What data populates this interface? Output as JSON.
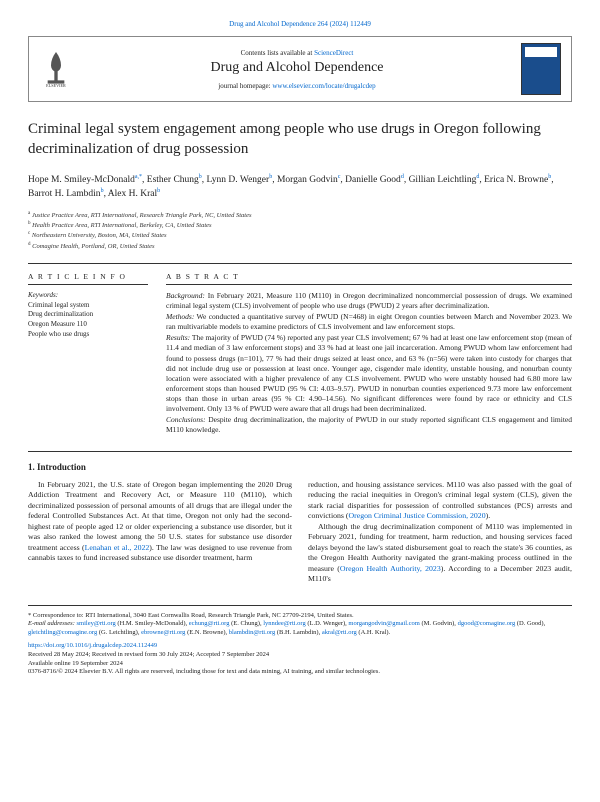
{
  "topLink": "Drug and Alcohol Dependence 264 (2024) 112449",
  "header": {
    "contentsPrefix": "Contents lists available at ",
    "contentsLink": "ScienceDirect",
    "journalName": "Drug and Alcohol Dependence",
    "homepagePrefix": "journal homepage: ",
    "homepageLink": "www.elsevier.com/locate/drugalcdep"
  },
  "title": "Criminal legal system engagement among people who use drugs in Oregon following decriminalization of drug possession",
  "authors": "Hope M. Smiley-McDonald",
  "authorsSup1": "a,*",
  "authorsCont1": ", Esther Chung",
  "authorsSup2": "b",
  "authorsCont2": ", Lynn D. Wenger",
  "authorsSup3": "b",
  "authorsCont3": ", Morgan Godvin",
  "authorsSup4": "c",
  "authorsCont4": ", Danielle Good",
  "authorsSup5": "d",
  "authorsCont5": ", Gillian Leichtling",
  "authorsSup6": "d",
  "authorsCont6": ", Erica N. Browne",
  "authorsSup7": "b",
  "authorsCont7": ", Barrot H. Lambdin",
  "authorsSup8": "b",
  "authorsCont8": ", Alex H. Kral",
  "authorsSup9": "b",
  "affiliations": {
    "a": "Justice Practice Area, RTI International, Research Triangle Park, NC, United States",
    "b": "Health Practice Area, RTI International, Berkeley, CA, United States",
    "c": "Northeastern University, Boston, MA, United States",
    "d": "Comagine Health, Portland, OR, United States"
  },
  "articleInfoHead": "A R T I C L E  I N F O",
  "abstractHead": "A B S T R A C T",
  "keywordsLabel": "Keywords:",
  "keywords": [
    "Criminal legal system",
    "Drug decriminalization",
    "Oregon Measure 110",
    "People who use drugs"
  ],
  "abstract": {
    "bgLabel": "Background:",
    "bg": " In February 2021, Measure 110 (M110) in Oregon decriminalized noncommercial possession of drugs. We examined criminal legal system (CLS) involvement of people who use drugs (PWUD) 2 years after decriminalization.",
    "methLabel": "Methods:",
    "meth": " We conducted a quantitative survey of PWUD (N=468) in eight Oregon counties between March and November 2023. We ran multivariable models to examine predictors of CLS involvement and law enforcement stops.",
    "resLabel": "Results:",
    "res": " The majority of PWUD (74 %) reported any past year CLS involvement; 67 % had at least one law enforcement stop (mean of 11.4 and median of 3 law enforcement stops) and 33 % had at least one jail incarceration. Among PWUD whom law enforcement had found to possess drugs (n=101), 77 % had their drugs seized at least once, and 63 % (n=56) were taken into custody for charges that did not include drug use or possession at least once. Younger age, cisgender male identity, unstable housing, and nonurban county location were associated with a higher prevalence of any CLS involvement. PWUD who were unstably housed had 6.80 more law enforcement stops than housed PWUD (95 % CI: 4.03–9.57). PWUD in nonurban counties experienced 9.73 more law enforcement stops than those in urban areas (95 % CI: 4.90–14.56). No significant differences were found by race or ethnicity and CLS involvement. Only 13 % of PWUD were aware that all drugs had been decriminalized.",
    "concLabel": "Conclusions:",
    "conc": " Despite drug decriminalization, the majority of PWUD in our study reported significant CLS engagement and limited M110 knowledge."
  },
  "introHead": "1. Introduction",
  "introCol1": "In February 2021, the U.S. state of Oregon began implementing the 2020 Drug Addiction Treatment and Recovery Act, or Measure 110 (M110), which decriminalized possession of personal amounts of all drugs that are illegal under the federal Controlled Substances Act. At that time, Oregon not only had the second-highest rate of people aged 12 or older experiencing a substance use disorder, but it was also ranked the lowest among the 50 U.S. states for substance use disorder treatment access (",
  "introLink1": "Lenahan et al., 2022",
  "introCol1b": "). The law was designed to use revenue from cannabis taxes to fund increased substance use disorder treatment, harm",
  "introCol2": "reduction, and housing assistance services. M110 was also passed with the goal of reducing the racial inequities in Oregon's criminal legal system (CLS), given the stark racial disparities for possession of controlled substances (PCS) arrests and convictions (",
  "introLink2": "Oregon Criminal Justice Commission, 2020",
  "introCol2b": ").",
  "introCol2c": "Although the drug decriminalization component of M110 was implemented in February 2021, funding for treatment, harm reduction, and housing services faced delays beyond the law's stated disbursement goal to reach the state's 36 counties, as the Oregon Health Authority navigated the grant-making process outlined in the measure (",
  "introLink3": "Oregon Health Authority, 2023",
  "introCol2d": "). According to a December 2023 audit, M110's",
  "footer": {
    "corrLabel": "* Correspondence to: ",
    "corr": "RTI International, 3040 East Cornwallis Road, Research Triangle Park, NC 27709-2194, United States.",
    "emailLabel": "E-mail addresses: ",
    "emails": "smiley@rti.org (H.M. Smiley-McDonald), echung@rti.org (E. Chung), lynndee@rti.org (L.D. Wenger), morgangodvin@gmail.com (M. Godvin), dgood@comagine.org (D. Good), gleichtling@comagine.org (G. Leichtling), ebrowne@rti.org (E.N. Browne), blambdin@rti.org (B.H. Lambdin), akral@rti.org (A.H. Kral).",
    "doi": "https://doi.org/10.1016/j.drugalcdep.2024.112449",
    "dates": "Received 28 May 2024; Received in revised form 30 July 2024; Accepted 7 September 2024",
    "online": "Available online 19 September 2024",
    "copyright": "0376-8716/© 2024 Elsevier B.V. All rights are reserved, including those for text and data mining, AI training, and similar technologies."
  }
}
